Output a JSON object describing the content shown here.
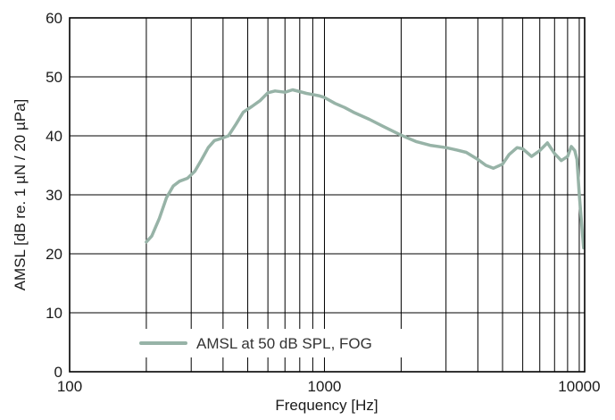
{
  "chart_data": {
    "type": "line",
    "xlabel": "Frequency [Hz]",
    "ylabel": "AMSL [dB re. 1 µN / 20 µPa]",
    "x_scale": "log",
    "xlim": [
      100,
      10500
    ],
    "ylim": [
      0,
      60
    ],
    "x_ticks": [
      {
        "value": 100,
        "label": "100"
      },
      {
        "value": 1000,
        "label": "1000"
      },
      {
        "value": 10000,
        "label": "10000"
      }
    ],
    "y_ticks": [
      0,
      10,
      20,
      30,
      40,
      50,
      60
    ],
    "grid": true,
    "x_grid_from": 200,
    "legend": {
      "position": "bottom-left"
    },
    "series": [
      {
        "name": "AMSL at 50 dB SPL, FOG",
        "color": "#97b3a7",
        "x": [
          200,
          210,
          225,
          240,
          255,
          270,
          290,
          310,
          330,
          350,
          370,
          390,
          420,
          450,
          480,
          520,
          560,
          600,
          640,
          700,
          750,
          800,
          850,
          900,
          950,
          1000,
          1100,
          1200,
          1300,
          1500,
          1700,
          2000,
          2300,
          2600,
          3000,
          3300,
          3600,
          4000,
          4300,
          4600,
          5000,
          5300,
          5700,
          6000,
          6500,
          7000,
          7500,
          8000,
          8500,
          9000,
          9300,
          9600,
          9800,
          10000,
          10200,
          10400
        ],
        "y": [
          22,
          23,
          26,
          29.5,
          31.5,
          32.3,
          32.8,
          34,
          36,
          38,
          39.2,
          39.5,
          40,
          42,
          44,
          45,
          46,
          47.3,
          47.6,
          47.4,
          47.8,
          47.5,
          47.2,
          47.0,
          46.8,
          46.5,
          45.5,
          44.8,
          44,
          42.8,
          41.6,
          40.1,
          39.0,
          38.4,
          38.0,
          37.6,
          37.2,
          36.0,
          35.0,
          34.5,
          35.2,
          36.8,
          38.0,
          37.8,
          36.5,
          37.5,
          38.8,
          37.0,
          35.8,
          36.5,
          38.2,
          37.5,
          36.0,
          30.0,
          25.5,
          21.0
        ]
      }
    ]
  }
}
